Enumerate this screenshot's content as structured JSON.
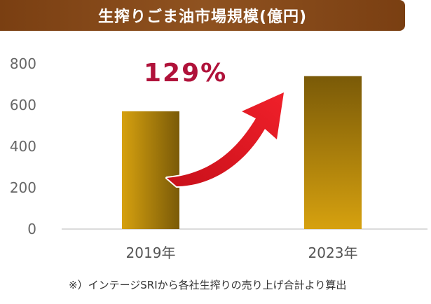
{
  "chart_data": {
    "type": "bar",
    "title": "生搾りごま油市場規模(億円)",
    "categories": [
      "2019年",
      "2023年"
    ],
    "values": [
      570,
      740
    ],
    "ylim": [
      0,
      800
    ],
    "yticks": [
      0,
      200,
      400,
      600,
      800
    ],
    "grid": false,
    "annotation": "129%",
    "footnote": "※）インテージSRIから各社生搾りの売り上げ合計より算出",
    "colors": {
      "bar_2019": [
        "#d6a10f",
        "#7a5a08"
      ],
      "bar_2023": [
        "#7a5a08",
        "#d6a10f"
      ],
      "arrow": "#e4141e",
      "annotation": "#b0123a",
      "title_bg": "#8a4b1c"
    }
  }
}
